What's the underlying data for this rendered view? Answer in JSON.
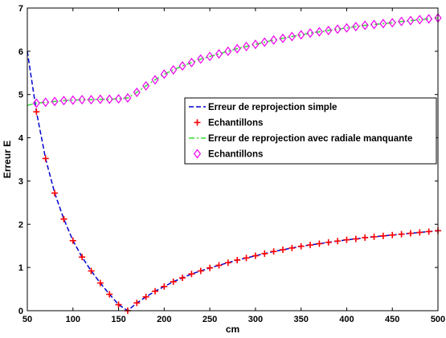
{
  "chart_data": {
    "type": "line",
    "xlabel": "cm",
    "ylabel": "Erreur E",
    "xlim": [
      50,
      500
    ],
    "ylim": [
      0,
      7
    ],
    "xticks": [
      50,
      100,
      150,
      200,
      250,
      300,
      350,
      400,
      450,
      500
    ],
    "yticks": [
      0,
      1,
      2,
      3,
      4,
      5,
      6,
      7
    ],
    "grid": false,
    "legend_position": "center-right",
    "series": [
      {
        "name": "Erreur de reprojection simple",
        "style": "dashed-line",
        "color": "#0000cc",
        "x": [
          50,
          60,
          70,
          80,
          90,
          100,
          110,
          120,
          130,
          140,
          150,
          160,
          170,
          180,
          190,
          200,
          210,
          220,
          230,
          240,
          250,
          260,
          270,
          280,
          290,
          300,
          310,
          320,
          330,
          340,
          350,
          360,
          370,
          380,
          390,
          400,
          410,
          420,
          430,
          440,
          450,
          460,
          470,
          480,
          490,
          500
        ],
        "y": [
          6.0,
          4.6,
          3.52,
          2.72,
          2.12,
          1.62,
          1.24,
          0.92,
          0.64,
          0.38,
          0.14,
          0.0,
          0.18,
          0.32,
          0.45,
          0.56,
          0.67,
          0.76,
          0.85,
          0.92,
          0.99,
          1.05,
          1.11,
          1.17,
          1.22,
          1.27,
          1.32,
          1.37,
          1.41,
          1.45,
          1.49,
          1.52,
          1.55,
          1.58,
          1.61,
          1.64,
          1.66,
          1.69,
          1.71,
          1.73,
          1.75,
          1.77,
          1.79,
          1.81,
          1.83,
          1.85
        ]
      },
      {
        "name": "Echantillons",
        "style": "plus-marker",
        "color": "#ff0000",
        "x": [
          60,
          70,
          80,
          90,
          100,
          110,
          120,
          130,
          140,
          150,
          160,
          170,
          180,
          190,
          200,
          210,
          220,
          230,
          240,
          250,
          260,
          270,
          280,
          290,
          300,
          310,
          320,
          330,
          340,
          350,
          360,
          370,
          380,
          390,
          400,
          410,
          420,
          430,
          440,
          450,
          460,
          470,
          480,
          490,
          500
        ],
        "y": [
          4.6,
          3.52,
          2.72,
          2.12,
          1.62,
          1.24,
          0.92,
          0.64,
          0.38,
          0.14,
          0.0,
          0.18,
          0.32,
          0.45,
          0.56,
          0.67,
          0.76,
          0.85,
          0.92,
          0.99,
          1.05,
          1.11,
          1.17,
          1.22,
          1.27,
          1.32,
          1.37,
          1.41,
          1.45,
          1.49,
          1.52,
          1.55,
          1.58,
          1.61,
          1.64,
          1.66,
          1.69,
          1.71,
          1.73,
          1.75,
          1.77,
          1.79,
          1.81,
          1.83,
          1.85
        ]
      },
      {
        "name": "Erreur de reprojection avec radiale manquante",
        "style": "dashdot-line",
        "color": "#33dd33",
        "x": [
          50,
          60,
          70,
          80,
          90,
          100,
          110,
          120,
          130,
          140,
          150,
          160,
          170,
          180,
          190,
          200,
          210,
          220,
          230,
          240,
          250,
          260,
          270,
          280,
          290,
          300,
          310,
          320,
          330,
          340,
          350,
          360,
          370,
          380,
          390,
          400,
          410,
          420,
          430,
          440,
          450,
          460,
          470,
          480,
          490,
          500
        ],
        "y": [
          4.75,
          4.8,
          4.82,
          4.84,
          4.86,
          4.87,
          4.88,
          4.88,
          4.89,
          4.89,
          4.9,
          4.92,
          5.05,
          5.2,
          5.34,
          5.47,
          5.57,
          5.66,
          5.74,
          5.82,
          5.88,
          5.94,
          6.0,
          6.06,
          6.11,
          6.16,
          6.21,
          6.26,
          6.3,
          6.34,
          6.38,
          6.42,
          6.45,
          6.48,
          6.51,
          6.54,
          6.57,
          6.6,
          6.62,
          6.64,
          6.66,
          6.69,
          6.71,
          6.73,
          6.75,
          6.77
        ]
      },
      {
        "name": "Echantillons",
        "style": "diamond-marker",
        "color": "#ee00ee",
        "x": [
          60,
          70,
          80,
          90,
          100,
          110,
          120,
          130,
          140,
          150,
          160,
          170,
          180,
          190,
          200,
          210,
          220,
          230,
          240,
          250,
          260,
          270,
          280,
          290,
          300,
          310,
          320,
          330,
          340,
          350,
          360,
          370,
          380,
          390,
          400,
          410,
          420,
          430,
          440,
          450,
          460,
          470,
          480,
          490,
          500
        ],
        "y": [
          4.8,
          4.82,
          4.84,
          4.86,
          4.87,
          4.88,
          4.88,
          4.89,
          4.89,
          4.9,
          4.92,
          5.05,
          5.2,
          5.34,
          5.47,
          5.57,
          5.66,
          5.74,
          5.82,
          5.88,
          5.94,
          6.0,
          6.06,
          6.11,
          6.16,
          6.21,
          6.26,
          6.3,
          6.34,
          6.38,
          6.42,
          6.45,
          6.48,
          6.51,
          6.54,
          6.57,
          6.6,
          6.62,
          6.64,
          6.66,
          6.69,
          6.71,
          6.73,
          6.75,
          6.77
        ]
      }
    ]
  }
}
